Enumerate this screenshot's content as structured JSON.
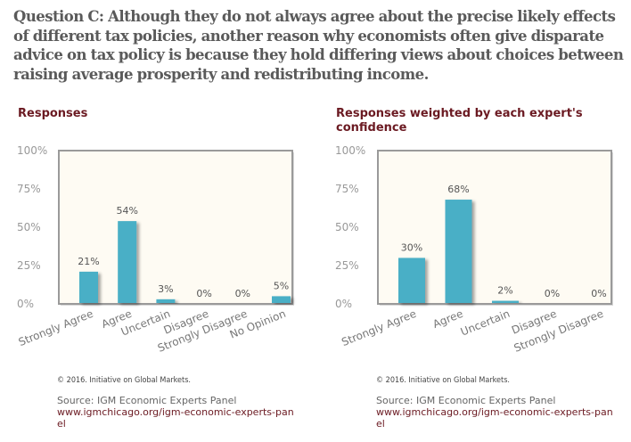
{
  "question": "Question C: Although they do not always agree about the precise likely effects of different tax policies, another reason why economists often give disparate advice on tax policy is because they hold differing views about choices between raising average prosperity and redistributing income.",
  "colors": {
    "bar": "#4aafc6",
    "plot_bg": "#fefbf3",
    "frame": "#9a9a9a",
    "title": "#6b1a22",
    "axis_text": "#999999",
    "label_text": "#555555"
  },
  "chart_data": [
    {
      "type": "bar",
      "title": "Responses",
      "categories": [
        "Strongly Agree",
        "Agree",
        "Uncertain",
        "Disagree",
        "Strongly Disagree",
        "No Opinion"
      ],
      "values": [
        21,
        54,
        3,
        0,
        0,
        5
      ],
      "data_labels": [
        "21%",
        "54%",
        "3%",
        "0%",
        "0%",
        "5%"
      ],
      "yticks": [
        "0%",
        "25%",
        "50%",
        "75%",
        "100%"
      ],
      "ylim": [
        0,
        100
      ],
      "xlabel": "",
      "ylabel": "",
      "grid": false,
      "copyright": "© 2016. Initiative on Global Markets.",
      "source": "Source: IGM Economic Experts Panel",
      "source_url": "www.igmchicago.org/igm-economic-experts-panel"
    },
    {
      "type": "bar",
      "title": "Responses weighted by each expert's confidence",
      "categories": [
        "Strongly Agree",
        "Agree",
        "Uncertain",
        "Disagree",
        "Strongly Disagree"
      ],
      "values": [
        30,
        68,
        2,
        0,
        0
      ],
      "data_labels": [
        "30%",
        "68%",
        "2%",
        "0%",
        "0%"
      ],
      "yticks": [
        "0%",
        "25%",
        "50%",
        "75%",
        "100%"
      ],
      "ylim": [
        0,
        100
      ],
      "xlabel": "",
      "ylabel": "",
      "grid": false,
      "copyright": "© 2016. Initiative on Global Markets.",
      "source": "Source: IGM Economic Experts Panel",
      "source_url": "www.igmchicago.org/igm-economic-experts-panel"
    }
  ]
}
